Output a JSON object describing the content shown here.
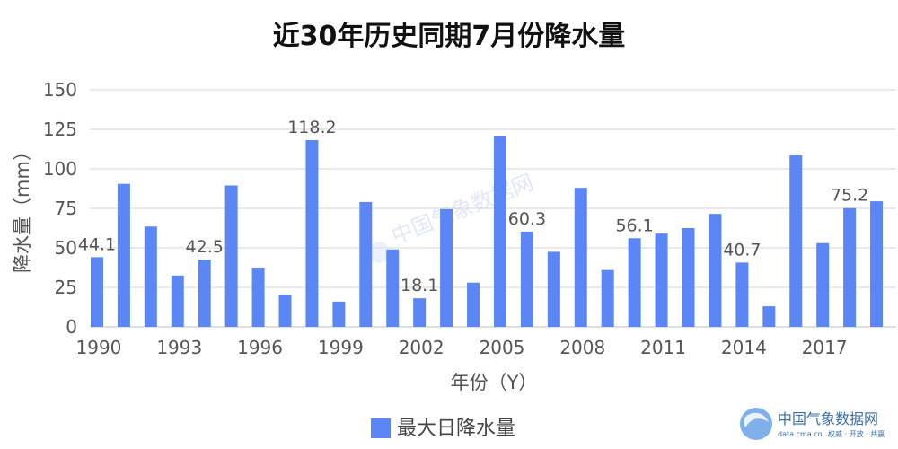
{
  "chart_data": {
    "type": "bar",
    "title": "近30年历史同期7月份降水量",
    "xlabel": "年份（Y）",
    "ylabel": "降水量（mm）",
    "ylim": [
      0,
      150
    ],
    "yticks": [
      0,
      25,
      50,
      75,
      100,
      125,
      150
    ],
    "grid": true,
    "legend_position": "bottom",
    "bar_color": "#5b87f6",
    "x_tick_labels": [
      "1990",
      "1993",
      "1996",
      "1999",
      "2002",
      "2005",
      "2008",
      "2011",
      "2014",
      "2017"
    ],
    "categories": [
      1990,
      1991,
      1992,
      1993,
      1994,
      1995,
      1996,
      1997,
      1998,
      1999,
      2000,
      2001,
      2002,
      2003,
      2004,
      2005,
      2006,
      2007,
      2008,
      2009,
      2010,
      2011,
      2012,
      2013,
      2014,
      2015,
      2016,
      2017,
      2018,
      2019
    ],
    "series": [
      {
        "name": "最大日降水量",
        "values": [
          44.1,
          90.5,
          63.5,
          32.5,
          42.5,
          89.5,
          37.5,
          20.5,
          118.2,
          16,
          79,
          49,
          18.1,
          74.5,
          28,
          120.5,
          60.3,
          47.5,
          88,
          36,
          56.1,
          59,
          62.5,
          71.5,
          40.7,
          13,
          108.5,
          53,
          75.2,
          79.5
        ]
      }
    ],
    "data_labels": [
      {
        "category": 1990,
        "text": "44.1"
      },
      {
        "category": 1994,
        "text": "42.5"
      },
      {
        "category": 1998,
        "text": "118.2"
      },
      {
        "category": 2002,
        "text": "18.1"
      },
      {
        "category": 2006,
        "text": "60.3"
      },
      {
        "category": 2010,
        "text": "56.1"
      },
      {
        "category": 2014,
        "text": "40.7"
      },
      {
        "category": 2018,
        "text": "75.2"
      }
    ]
  },
  "watermark": {
    "center_text": "中国气象数据网",
    "logo_name": "中国气象数据网",
    "logo_url_text": "data.cma.cn",
    "logo_sub_text": "权威 · 开放 · 共赢",
    "logo_color": "#3a6ea5"
  }
}
